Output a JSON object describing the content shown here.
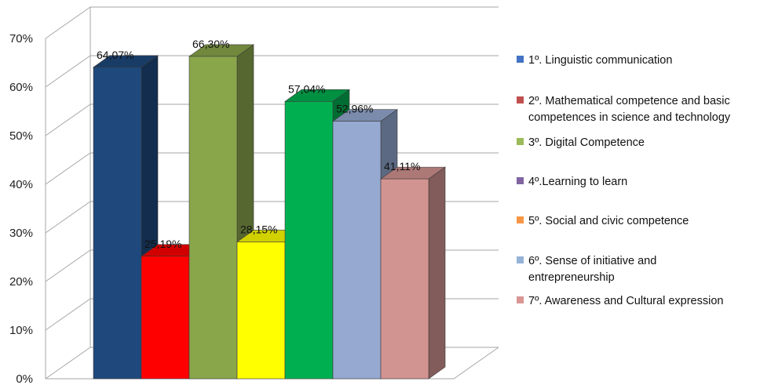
{
  "chart_data": {
    "type": "bar",
    "title": "",
    "xlabel": "",
    "ylabel": "",
    "ylim": [
      0,
      70
    ],
    "y_ticks": [
      "0%",
      "10%",
      "20%",
      "30%",
      "40%",
      "50%",
      "60%",
      "70%"
    ],
    "grid": true,
    "legend_position": "right",
    "series": [
      {
        "name": "1º. Linguistic communication",
        "value": 64.07,
        "label": "64,07%",
        "color": "#1f497d"
      },
      {
        "name": "2º. Mathematical competence and basic competences in science and technology",
        "value": 25.19,
        "label": "25,19%",
        "color": "#ff0000"
      },
      {
        "name": "3º. Digital Competence",
        "value": 66.3,
        "label": "66,30%",
        "color": "#8aa64b"
      },
      {
        "name": "4º.Learning to learn",
        "value": 28.15,
        "label": "28,15%",
        "color": "#ffff00"
      },
      {
        "name": "5º. Social and civic competence",
        "value": 57.04,
        "label": "57,04%",
        "color": "#00b050"
      },
      {
        "name": "6º. Sense of initiative and entrepreneurship",
        "value": 52.96,
        "label": "52,96%",
        "color": "#95a9d1"
      },
      {
        "name": "7º. Awareness and Cultural expression",
        "value": 41.11,
        "label": "41,11%",
        "color": "#d29491"
      }
    ],
    "legend": [
      {
        "lines": [
          "1º. Linguistic communication"
        ],
        "color": "#4472c4"
      },
      {
        "lines": [
          "2º. Mathematical competence and basic",
          "competences in science and technology"
        ],
        "color": "#c0504d"
      },
      {
        "lines": [
          "3º. Digital Competence"
        ],
        "color": "#9bbb59"
      },
      {
        "lines": [
          "4º.Learning to learn"
        ],
        "color": "#8064a2"
      },
      {
        "lines": [
          "5º. Social and civic competence"
        ],
        "color": "#f79646"
      },
      {
        "lines": [
          "6º. Sense of initiative and",
          "entrepreneurship"
        ],
        "color": "#95b3d7"
      },
      {
        "lines": [
          "7º. Awareness and Cultural expression"
        ],
        "color": "#d99694"
      }
    ]
  }
}
